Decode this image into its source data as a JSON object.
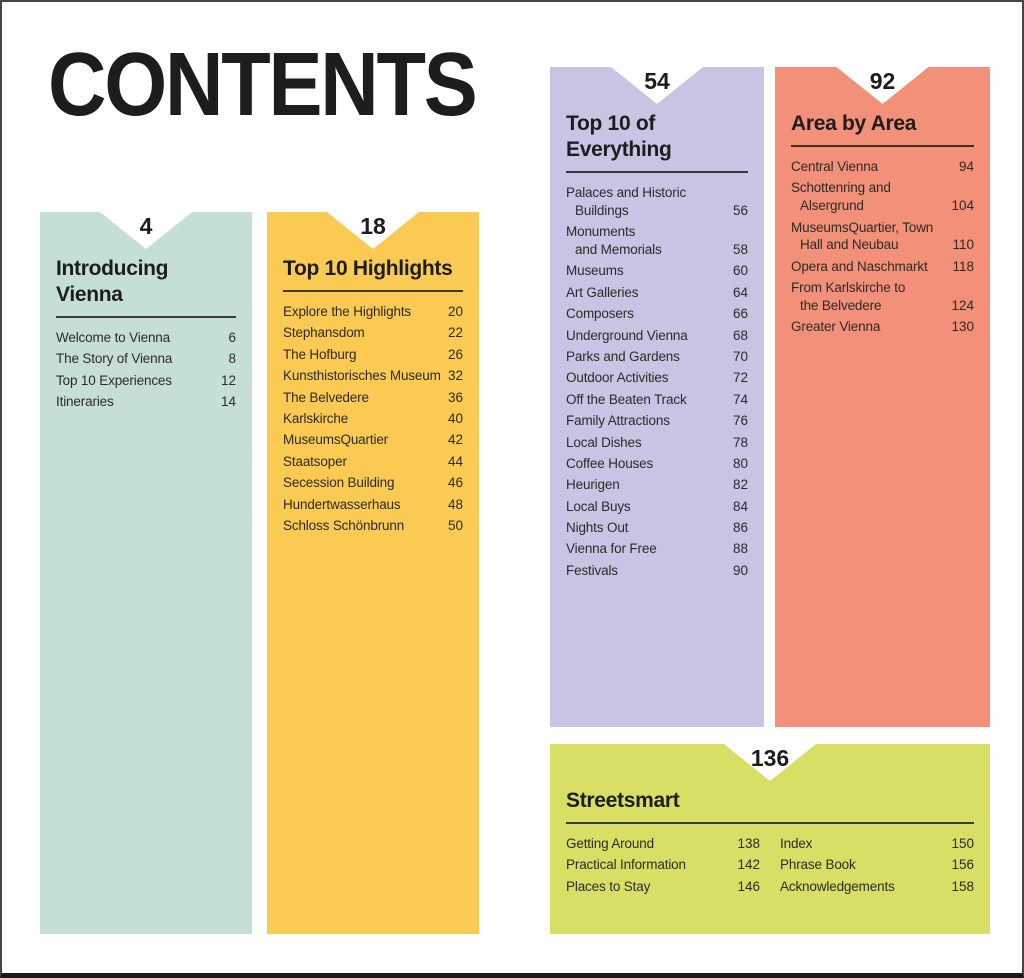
{
  "page": {
    "title": "CONTENTS"
  },
  "colors": {
    "ink": "#1d1d1b",
    "teal": "#c6dfd6",
    "yellow": "#fbca52",
    "purple": "#c9c3e4",
    "coral": "#f2907a",
    "green": "#d9de64"
  },
  "sections": [
    {
      "id": "introducing-vienna",
      "page_number": "4",
      "title": "Introducing\nVienna",
      "color": "#c6dfd6",
      "items": [
        {
          "label": "Welcome to Vienna",
          "page": "6"
        },
        {
          "label": "The Story of Vienna",
          "page": "8"
        },
        {
          "label": "Top 10 Experiences",
          "page": "12"
        },
        {
          "label": "Itineraries",
          "page": "14"
        }
      ]
    },
    {
      "id": "top-10-highlights",
      "page_number": "18",
      "title": "Top 10 Highlights",
      "color": "#fbca52",
      "items": [
        {
          "label": "Explore the Highlights",
          "page": "20"
        },
        {
          "label": "Stephansdom",
          "page": "22"
        },
        {
          "label": "The Hofburg",
          "page": "26"
        },
        {
          "label": "Kunsthistorisches Museum",
          "page": "32"
        },
        {
          "label": "The Belvedere",
          "page": "36"
        },
        {
          "label": "Karlskirche",
          "page": "40"
        },
        {
          "label": "MuseumsQuartier",
          "page": "42"
        },
        {
          "label": "Staatsoper",
          "page": "44"
        },
        {
          "label": "Secession Building",
          "page": "46"
        },
        {
          "label": "Hundertwasserhaus",
          "page": "48"
        },
        {
          "label": "Schloss Schönbrunn",
          "page": "50"
        }
      ]
    },
    {
      "id": "top-10-of-everything",
      "page_number": "54",
      "title": "Top 10 of\nEverything",
      "color": "#c9c3e4",
      "items": [
        {
          "label": "Palaces and Historic\nBuildings",
          "page": "56"
        },
        {
          "label": "Monuments\nand Memorials",
          "page": "58"
        },
        {
          "label": "Museums",
          "page": "60"
        },
        {
          "label": "Art Galleries",
          "page": "64"
        },
        {
          "label": "Composers",
          "page": "66"
        },
        {
          "label": "Underground Vienna",
          "page": "68"
        },
        {
          "label": "Parks and Gardens",
          "page": "70"
        },
        {
          "label": "Outdoor Activities",
          "page": "72"
        },
        {
          "label": "Off the Beaten Track",
          "page": "74"
        },
        {
          "label": "Family Attractions",
          "page": "76"
        },
        {
          "label": "Local Dishes",
          "page": "78"
        },
        {
          "label": "Coffee Houses",
          "page": "80"
        },
        {
          "label": "Heurigen",
          "page": "82"
        },
        {
          "label": "Local Buys",
          "page": "84"
        },
        {
          "label": "Nights Out",
          "page": "86"
        },
        {
          "label": "Vienna for Free",
          "page": "88"
        },
        {
          "label": "Festivals",
          "page": "90"
        }
      ]
    },
    {
      "id": "area-by-area",
      "page_number": "92",
      "title": "Area by Area",
      "color": "#f2907a",
      "items": [
        {
          "label": "Central Vienna",
          "page": "94"
        },
        {
          "label": "Schottenring and\nAlsergrund",
          "page": "104"
        },
        {
          "label": "MuseumsQuartier, Town\nHall and Neubau",
          "page": "110"
        },
        {
          "label": "Opera and Naschmarkt",
          "page": "118"
        },
        {
          "label": "From Karlskirche to\nthe Belvedere",
          "page": "124"
        },
        {
          "label": "Greater Vienna",
          "page": "130"
        }
      ]
    },
    {
      "id": "streetsmart",
      "page_number": "136",
      "title": "Streetsmart",
      "color": "#d9de64",
      "columns": [
        [
          {
            "label": "Getting Around",
            "page": "138"
          },
          {
            "label": "Practical Information",
            "page": "142"
          },
          {
            "label": "Places to Stay",
            "page": "146"
          }
        ],
        [
          {
            "label": "Index",
            "page": "150"
          },
          {
            "label": "Phrase Book",
            "page": "156"
          },
          {
            "label": "Acknowledgements",
            "page": "158"
          }
        ]
      ]
    }
  ]
}
